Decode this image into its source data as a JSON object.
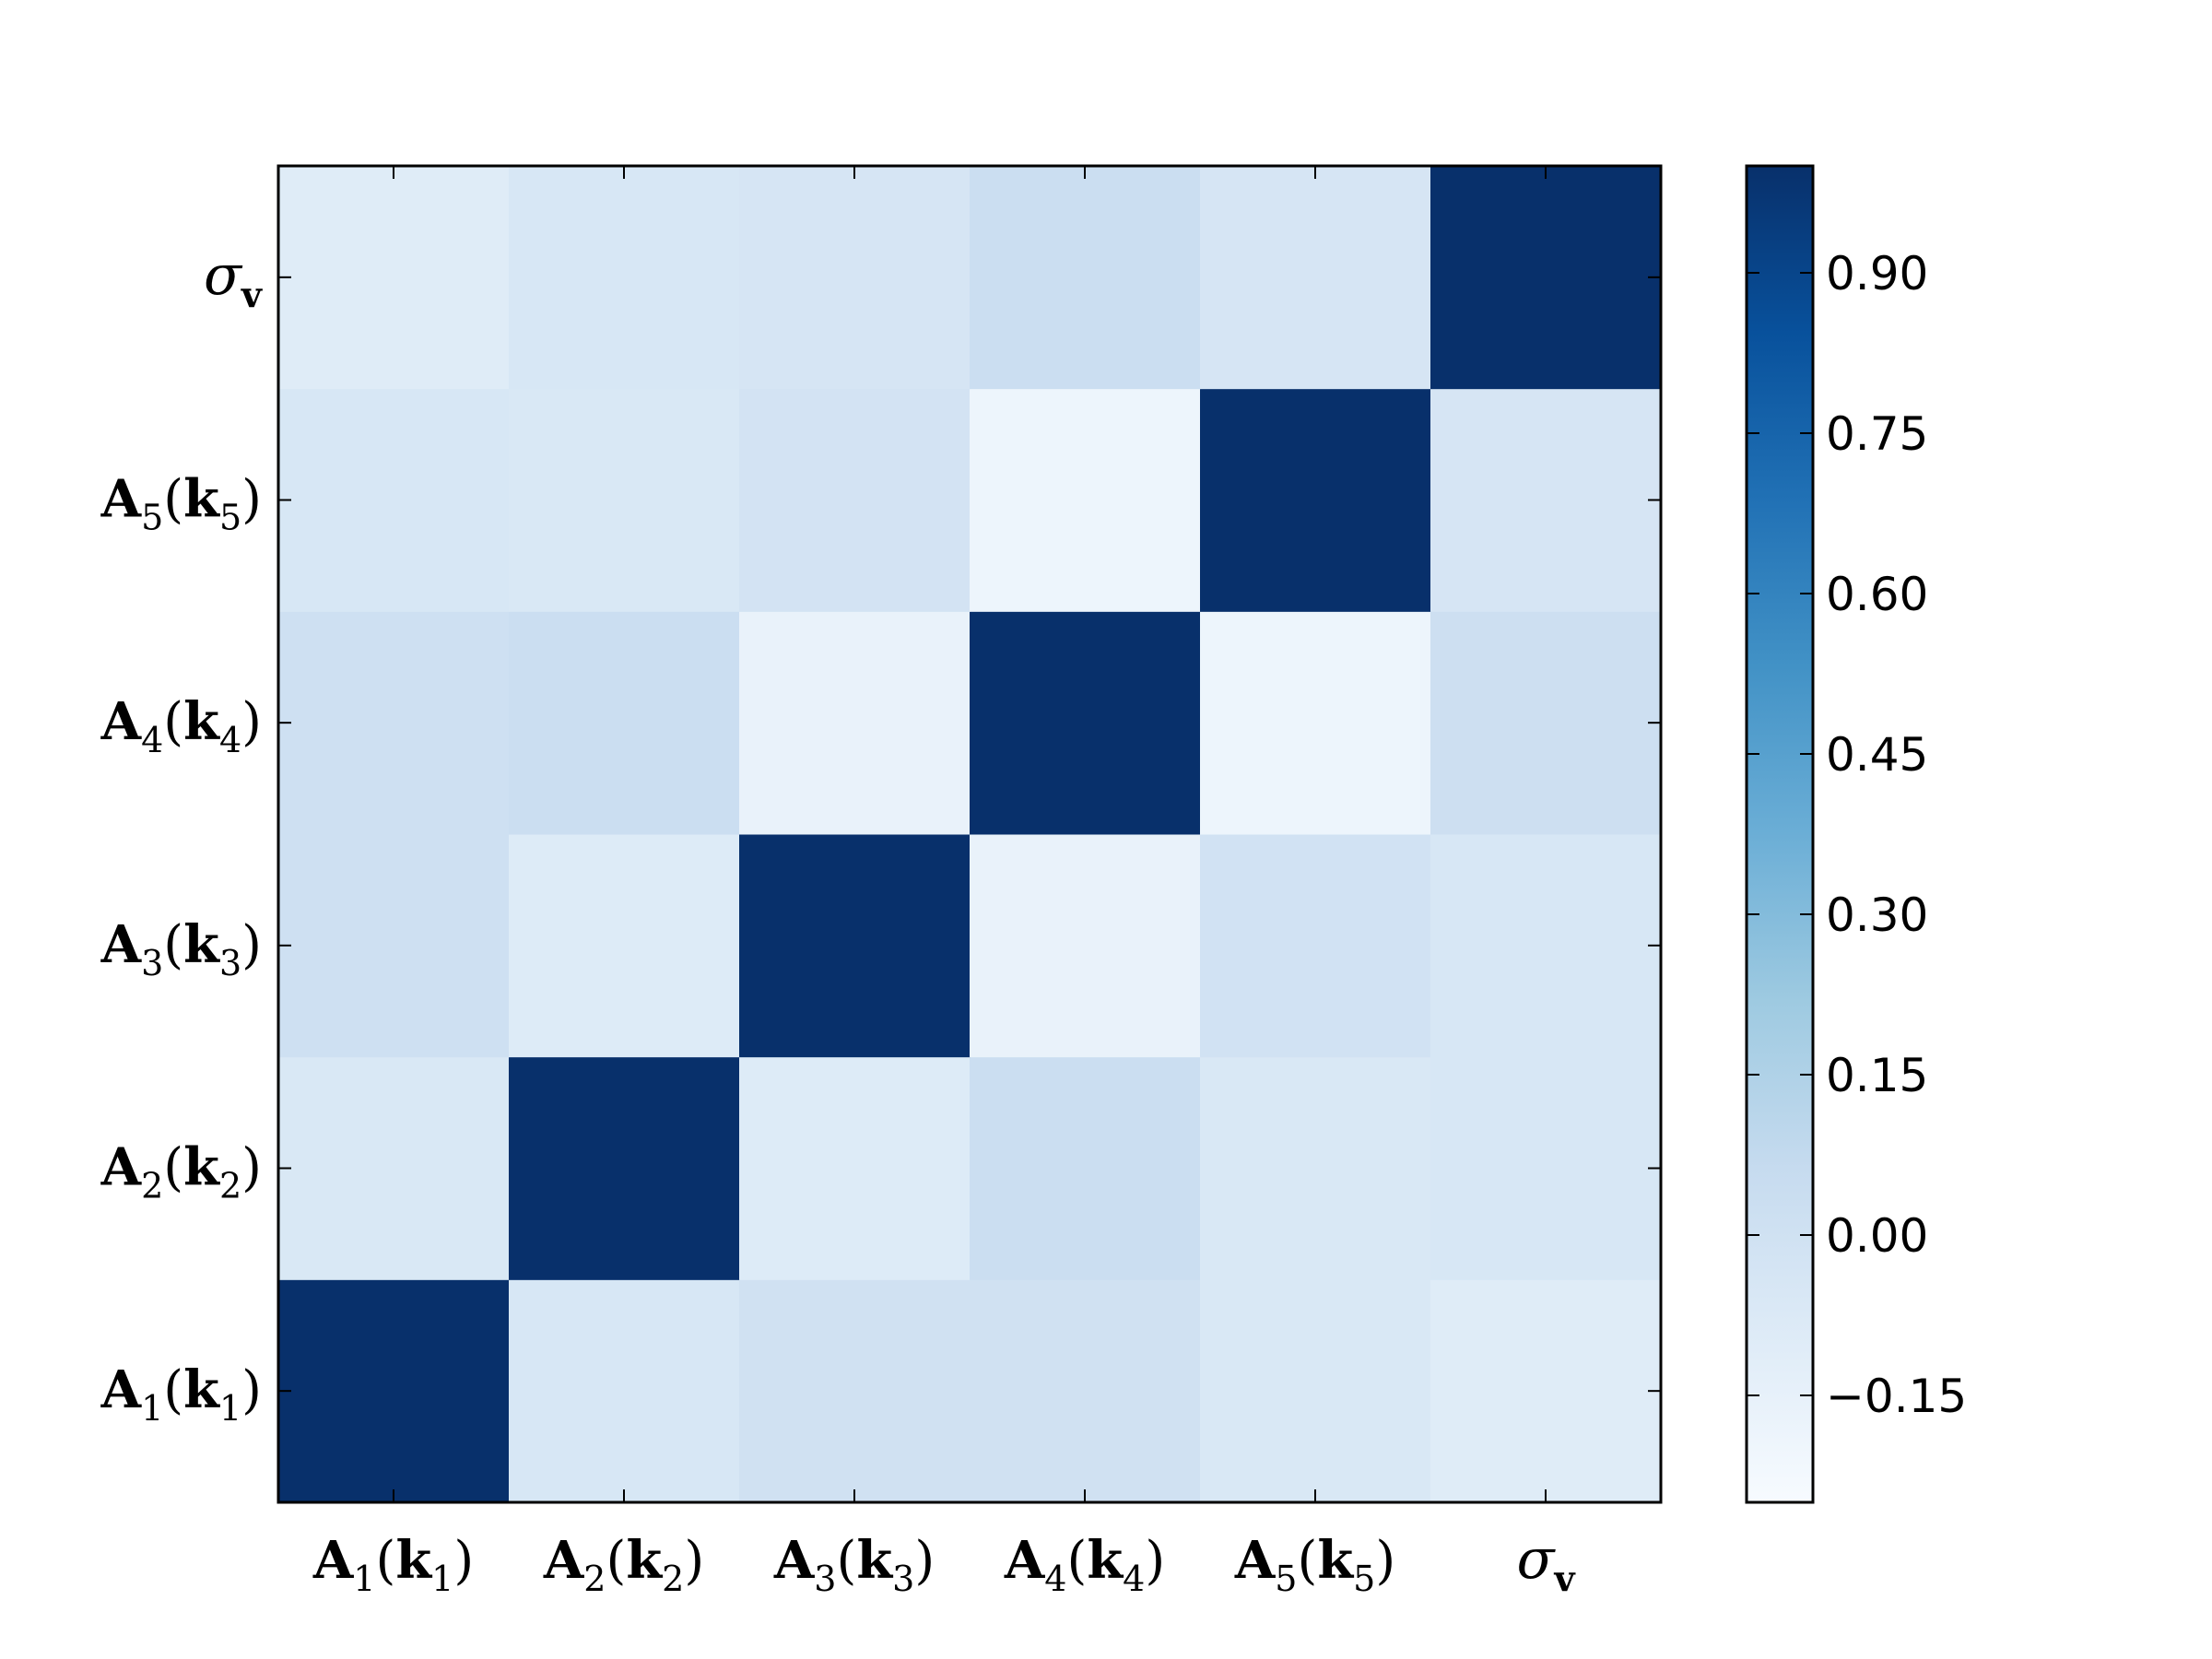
{
  "chart_data": {
    "type": "heatmap",
    "title": "",
    "xlabel": "",
    "ylabel": "",
    "x_labels": [
      "A1(k1)",
      "A2(k2)",
      "A3(k3)",
      "A4(k4)",
      "A5(k5)",
      "σv"
    ],
    "y_labels": [
      "A1(k1)",
      "A2(k2)",
      "A3(k3)",
      "A4(k4)",
      "A5(k5)",
      "σv"
    ],
    "values": [
      [
        1.0,
        -0.05,
        0.0,
        0.0,
        -0.06,
        -0.1
      ],
      [
        -0.06,
        1.0,
        -0.09,
        0.03,
        -0.06,
        -0.05
      ],
      [
        0.01,
        -0.09,
        1.0,
        -0.16,
        -0.01,
        -0.05
      ],
      [
        0.01,
        0.03,
        -0.16,
        1.0,
        -0.19,
        0.02
      ],
      [
        -0.05,
        -0.06,
        -0.02,
        -0.19,
        1.0,
        -0.04
      ],
      [
        -0.1,
        -0.05,
        -0.04,
        0.03,
        -0.04,
        1.0
      ]
    ],
    "colorbar": {
      "range": [
        -0.25,
        1.0
      ],
      "ticks": [
        -0.15,
        0.0,
        0.15,
        0.3,
        0.45,
        0.6,
        0.75,
        0.9
      ],
      "tick_labels": [
        "−0.15",
        "0.00",
        "0.15",
        "0.30",
        "0.45",
        "0.60",
        "0.75",
        "0.90"
      ],
      "colormap": "Blues",
      "color_stops": [
        "#f7fbff",
        "#deebf7",
        "#c6dbef",
        "#9ecae1",
        "#6baed6",
        "#4292c6",
        "#2171b5",
        "#08519c",
        "#08306b"
      ]
    },
    "grid": false
  }
}
